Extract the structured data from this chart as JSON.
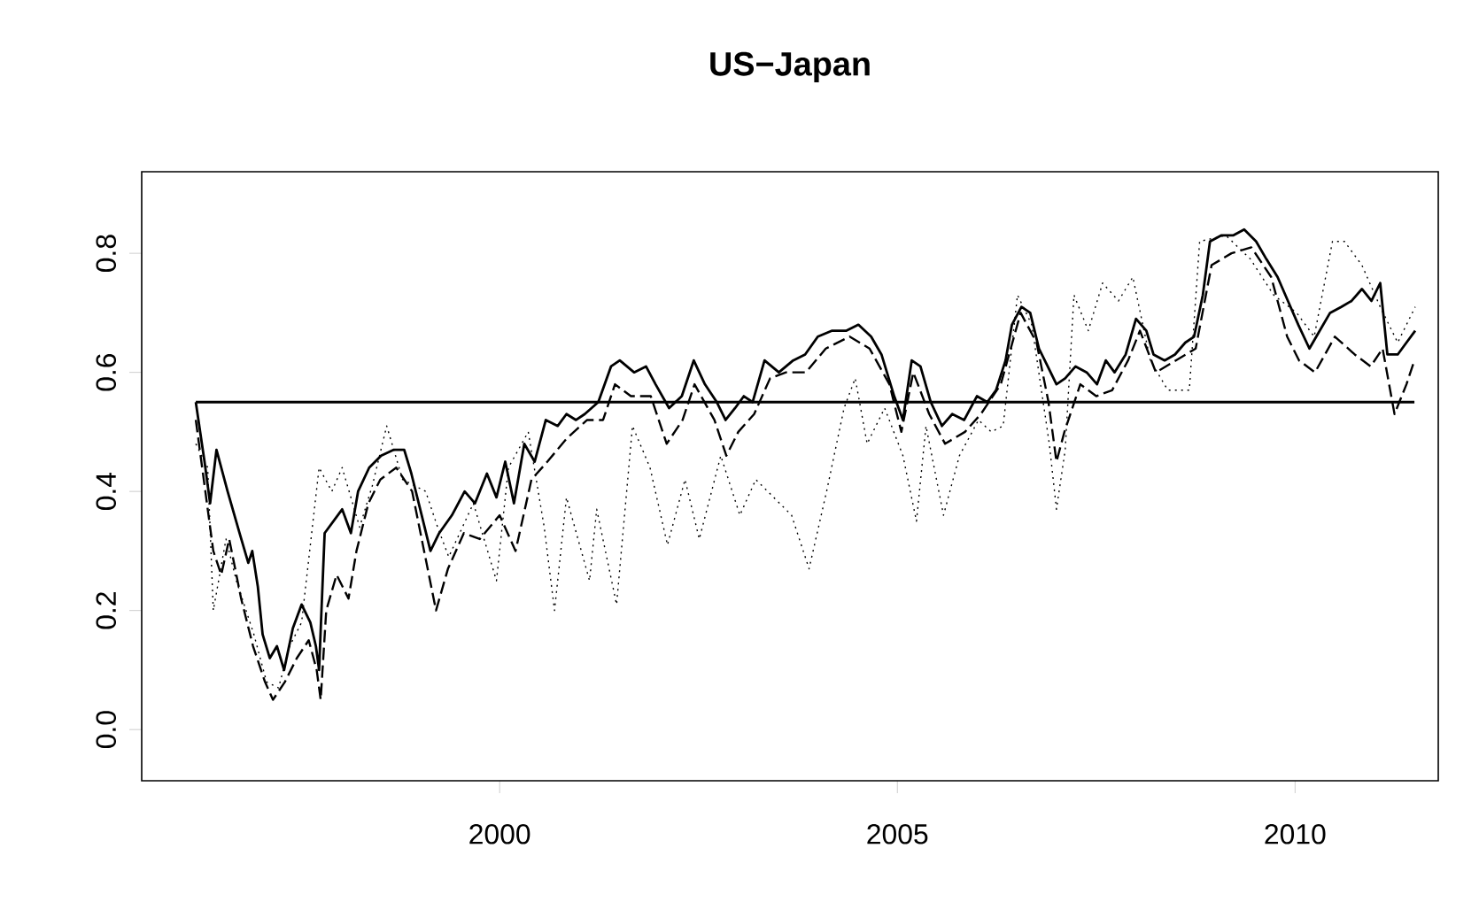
{
  "chart_data": {
    "type": "line",
    "title": "US−Japan",
    "xlim": [
      1995.5,
      2011.8
    ],
    "ylim": [
      -0.086,
      0.937
    ],
    "xticks": [
      2000,
      2005,
      2010
    ],
    "yticks": [
      {
        "value": 0,
        "label": "0.0"
      },
      {
        "value": 0.2,
        "label": "0.2"
      },
      {
        "value": 0.4,
        "label": "0.4"
      },
      {
        "value": 0.6,
        "label": "0.6"
      },
      {
        "value": 0.8,
        "label": "0.8"
      }
    ],
    "series": [
      {
        "color": "#000000",
        "line_style": "solid",
        "x": [
          1996.18,
          1996.29,
          1996.36,
          1996.44,
          1996.58,
          1996.73,
          1996.84,
          1996.89,
          1996.96,
          1997.02,
          1997.11,
          1997.2,
          1997.29,
          1997.4,
          1997.51,
          1997.62,
          1997.69,
          1997.73,
          1997.76,
          1997.8,
          1997.91,
          1998.02,
          1998.13,
          1998.22,
          1998.36,
          1998.51,
          1998.67,
          1998.8,
          1998.89,
          1999.02,
          1999.13,
          1999.24,
          1999.4,
          1999.56,
          1999.69,
          1999.84,
          1999.96,
          2000.07,
          2000.18,
          2000.31,
          2000.44,
          2000.58,
          2000.73,
          2000.84,
          2000.96,
          2001.07,
          2001.24,
          2001.4,
          2001.51,
          2001.69,
          2001.84,
          2001.96,
          2002.13,
          2002.29,
          2002.44,
          2002.58,
          2002.73,
          2002.84,
          2002.96,
          2003.07,
          2003.18,
          2003.33,
          2003.51,
          2003.69,
          2003.84,
          2004.0,
          2004.18,
          2004.36,
          2004.51,
          2004.67,
          2004.8,
          2004.96,
          2005.07,
          2005.18,
          2005.29,
          2005.42,
          2005.56,
          2005.69,
          2005.84,
          2006.0,
          2006.13,
          2006.24,
          2006.36,
          2006.44,
          2006.56,
          2006.67,
          2006.78,
          2006.89,
          2007.0,
          2007.11,
          2007.24,
          2007.38,
          2007.51,
          2007.62,
          2007.73,
          2007.87,
          2008.0,
          2008.13,
          2008.22,
          2008.36,
          2008.49,
          2008.62,
          2008.73,
          2008.84,
          2008.93,
          2009.07,
          2009.22,
          2009.36,
          2009.51,
          2009.64,
          2009.78,
          2009.91,
          2010.04,
          2010.18,
          2010.31,
          2010.44,
          2010.58,
          2010.71,
          2010.84,
          2010.96,
          2011.07,
          2011.16,
          2011.29,
          2011.4,
          2011.51
        ],
        "values": [
          0.55,
          0.45,
          0.38,
          0.47,
          0.4,
          0.33,
          0.28,
          0.3,
          0.24,
          0.16,
          0.12,
          0.14,
          0.1,
          0.17,
          0.21,
          0.18,
          0.14,
          0.1,
          0.2,
          0.33,
          0.35,
          0.37,
          0.33,
          0.4,
          0.44,
          0.46,
          0.47,
          0.47,
          0.43,
          0.36,
          0.3,
          0.33,
          0.36,
          0.4,
          0.38,
          0.43,
          0.39,
          0.45,
          0.38,
          0.48,
          0.45,
          0.52,
          0.51,
          0.53,
          0.52,
          0.53,
          0.55,
          0.61,
          0.62,
          0.6,
          0.61,
          0.58,
          0.54,
          0.56,
          0.62,
          0.58,
          0.55,
          0.52,
          0.54,
          0.56,
          0.55,
          0.62,
          0.6,
          0.62,
          0.63,
          0.66,
          0.67,
          0.67,
          0.68,
          0.66,
          0.63,
          0.56,
          0.52,
          0.62,
          0.61,
          0.55,
          0.51,
          0.53,
          0.52,
          0.56,
          0.55,
          0.57,
          0.62,
          0.68,
          0.71,
          0.7,
          0.64,
          0.61,
          0.58,
          0.59,
          0.61,
          0.6,
          0.58,
          0.62,
          0.6,
          0.63,
          0.69,
          0.67,
          0.63,
          0.62,
          0.63,
          0.65,
          0.66,
          0.73,
          0.82,
          0.83,
          0.83,
          0.84,
          0.82,
          0.79,
          0.76,
          0.72,
          0.68,
          0.64,
          0.67,
          0.7,
          0.71,
          0.72,
          0.74,
          0.72,
          0.75,
          0.63,
          0.63,
          0.65,
          0.67
        ]
      },
      {
        "color": "#000000",
        "line_style": "dashed",
        "x": [
          1996.18,
          1996.3,
          1996.4,
          1996.5,
          1996.6,
          1996.75,
          1996.9,
          1997.05,
          1997.15,
          1997.3,
          1997.45,
          1997.6,
          1997.7,
          1997.75,
          1997.82,
          1997.95,
          1998.1,
          1998.2,
          1998.35,
          1998.5,
          1998.7,
          1998.9,
          1999.05,
          1999.2,
          1999.35,
          1999.55,
          1999.75,
          2000.0,
          2000.2,
          2000.4,
          2000.6,
          2000.85,
          2001.1,
          2001.3,
          2001.45,
          2001.65,
          2001.9,
          2002.1,
          2002.3,
          2002.45,
          2002.7,
          2002.85,
          2003.0,
          2003.2,
          2003.4,
          2003.6,
          2003.85,
          2004.1,
          2004.4,
          2004.65,
          2004.9,
          2005.05,
          2005.2,
          2005.4,
          2005.6,
          2005.85,
          2006.05,
          2006.3,
          2006.55,
          2006.75,
          2006.9,
          2007.0,
          2007.1,
          2007.3,
          2007.5,
          2007.7,
          2007.9,
          2008.05,
          2008.25,
          2008.5,
          2008.75,
          2008.95,
          2009.2,
          2009.45,
          2009.7,
          2009.9,
          2010.05,
          2010.25,
          2010.5,
          2010.75,
          2010.95,
          2011.1,
          2011.25,
          2011.4,
          2011.5
        ],
        "values": [
          0.52,
          0.4,
          0.3,
          0.26,
          0.32,
          0.22,
          0.14,
          0.08,
          0.05,
          0.08,
          0.12,
          0.15,
          0.1,
          0.05,
          0.2,
          0.26,
          0.22,
          0.3,
          0.38,
          0.42,
          0.44,
          0.4,
          0.3,
          0.2,
          0.27,
          0.33,
          0.32,
          0.36,
          0.3,
          0.42,
          0.45,
          0.49,
          0.52,
          0.52,
          0.58,
          0.56,
          0.56,
          0.48,
          0.52,
          0.58,
          0.52,
          0.46,
          0.5,
          0.53,
          0.59,
          0.6,
          0.6,
          0.64,
          0.66,
          0.64,
          0.58,
          0.5,
          0.6,
          0.53,
          0.48,
          0.5,
          0.53,
          0.58,
          0.7,
          0.65,
          0.55,
          0.45,
          0.5,
          0.58,
          0.56,
          0.57,
          0.62,
          0.67,
          0.6,
          0.62,
          0.64,
          0.78,
          0.8,
          0.81,
          0.76,
          0.66,
          0.62,
          0.6,
          0.66,
          0.63,
          0.61,
          0.64,
          0.53,
          0.58,
          0.62
        ]
      },
      {
        "color": "#000000",
        "line_style": "dotted",
        "x": [
          1996.18,
          1996.33,
          1996.4,
          1996.56,
          1996.69,
          1996.91,
          1997.07,
          1997.22,
          1997.36,
          1997.51,
          1997.73,
          1997.89,
          1998.02,
          1998.24,
          1998.4,
          1998.58,
          1998.78,
          1999.07,
          1999.22,
          1999.36,
          1999.67,
          1999.96,
          2000.11,
          2000.36,
          2000.56,
          2000.69,
          2000.84,
          2001.13,
          2001.22,
          2001.47,
          2001.67,
          2001.89,
          2002.11,
          2002.33,
          2002.51,
          2002.78,
          2003.02,
          2003.22,
          2003.67,
          2003.89,
          2004.11,
          2004.33,
          2004.47,
          2004.62,
          2004.84,
          2005.07,
          2005.24,
          2005.36,
          2005.58,
          2005.78,
          2006.02,
          2006.18,
          2006.33,
          2006.51,
          2006.69,
          2006.91,
          2007.0,
          2007.11,
          2007.22,
          2007.4,
          2007.58,
          2007.78,
          2007.96,
          2008.18,
          2008.4,
          2008.67,
          2008.8,
          2009.13,
          2009.44,
          2009.73,
          2010.02,
          2010.24,
          2010.47,
          2010.62,
          2010.84,
          2011.07,
          2011.29,
          2011.51
        ],
        "values": [
          0.48,
          0.44,
          0.2,
          0.32,
          0.25,
          0.16,
          0.08,
          0.07,
          0.14,
          0.18,
          0.44,
          0.4,
          0.44,
          0.34,
          0.41,
          0.51,
          0.42,
          0.4,
          0.34,
          0.29,
          0.38,
          0.25,
          0.44,
          0.5,
          0.34,
          0.2,
          0.39,
          0.25,
          0.37,
          0.21,
          0.51,
          0.44,
          0.31,
          0.42,
          0.32,
          0.46,
          0.36,
          0.42,
          0.36,
          0.27,
          0.4,
          0.54,
          0.59,
          0.48,
          0.54,
          0.46,
          0.35,
          0.51,
          0.36,
          0.46,
          0.52,
          0.5,
          0.51,
          0.73,
          0.68,
          0.48,
          0.37,
          0.47,
          0.73,
          0.67,
          0.75,
          0.72,
          0.76,
          0.62,
          0.57,
          0.57,
          0.82,
          0.83,
          0.79,
          0.73,
          0.7,
          0.66,
          0.82,
          0.82,
          0.78,
          0.71,
          0.65,
          0.71
        ]
      },
      {
        "color": "#000000",
        "line_style": "solid",
        "x": [
          1996.18,
          2011.5
        ],
        "values": [
          0.55,
          0.55
        ]
      }
    ]
  }
}
